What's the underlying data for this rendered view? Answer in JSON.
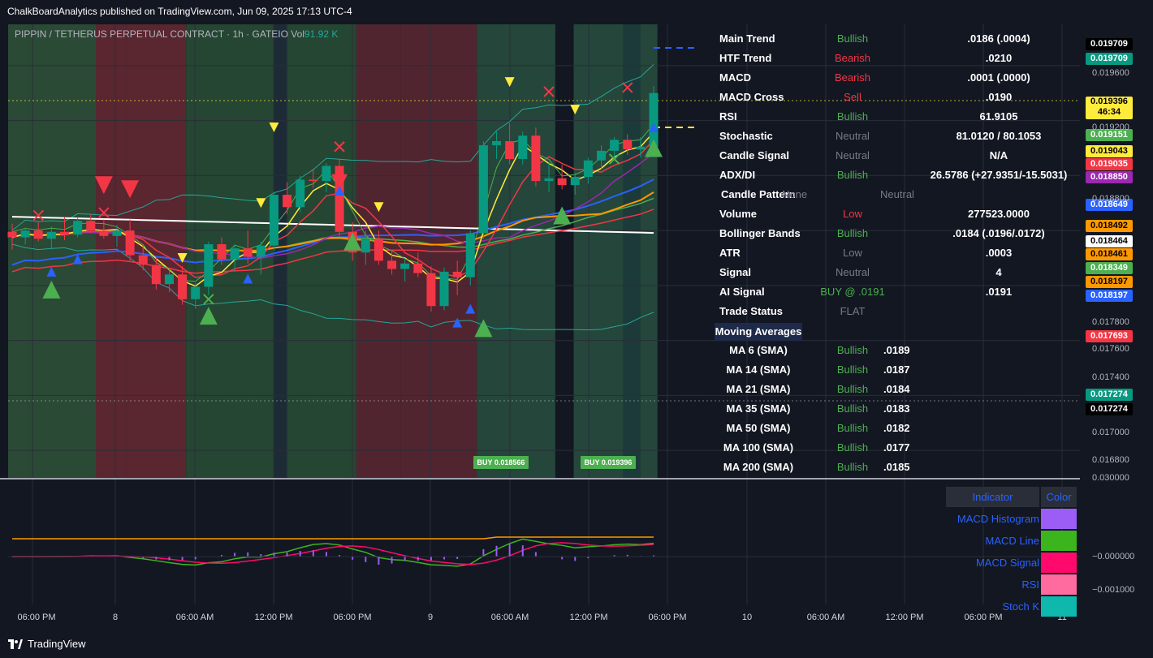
{
  "header": {
    "publisher": "ChalkBoardAnalytics published on TradingView.com, Jun 09, 2025 17:13 UTC-4",
    "symbol": "PIPPIN / TETHERUS PERPETUAL CONTRACT · 1h · GATEIO",
    "vol_label": "Vol",
    "vol_value": "91.92 K"
  },
  "footer": {
    "brand": "TradingView"
  },
  "dashboard": [
    {
      "label": "Main Trend",
      "status": "Bullish",
      "color": "#4caf50",
      "value": ".0186 (.0004)"
    },
    {
      "label": "HTF Trend",
      "status": "Bearish",
      "color": "#f23645",
      "value": ".0210"
    },
    {
      "label": "MACD",
      "status": "Bearish",
      "color": "#f23645",
      "value": ".0001 (.0000)"
    },
    {
      "label": "MACD Cross",
      "status": "Sell",
      "color": "#f23645",
      "value": ".0190"
    },
    {
      "label": "RSI",
      "status": "Bullish",
      "color": "#4caf50",
      "value": "61.9105"
    },
    {
      "label": "Stochastic",
      "status": "Neutral",
      "color": "#787b86",
      "value": "81.0120 / 80.1053"
    },
    {
      "label": "Candle Signal",
      "status": "Neutral",
      "color": "#787b86",
      "value": "N/A"
    },
    {
      "label": "ADX/DI",
      "status": "Bullish",
      "color": "#4caf50",
      "value": "26.5786 (+27.9351/-15.5031)"
    },
    {
      "label": "Candle Pattern",
      "status": "None",
      "color": "#787b86",
      "value": "Neutral",
      "value_color": "#787b86"
    },
    {
      "label": "Volume",
      "status": "Low",
      "color": "#f23645",
      "value": "277523.0000"
    },
    {
      "label": "Bollinger Bands",
      "status": "Bullish",
      "color": "#4caf50",
      "value": ".0184 (.0196/.0172)"
    },
    {
      "label": "ATR",
      "status": "Low",
      "color": "#787b86",
      "value": ".0003"
    },
    {
      "label": "Signal",
      "status": "Neutral",
      "color": "#787b86",
      "value": "4"
    },
    {
      "label": "AI Signal",
      "status": "BUY @ .0191",
      "color": "#4caf50",
      "value": ".0191"
    },
    {
      "label": "Trade Status",
      "status": "FLAT",
      "color": "#787b86",
      "value": ""
    }
  ],
  "moving_averages": {
    "header": "Moving Averages",
    "rows": [
      {
        "label": "MA 6 (SMA)",
        "status": "Bullish",
        "value": ".0189"
      },
      {
        "label": "MA 14 (SMA)",
        "status": "Bullish",
        "value": ".0187"
      },
      {
        "label": "MA 21 (SMA)",
        "status": "Bullish",
        "value": ".0184"
      },
      {
        "label": "MA 35 (SMA)",
        "status": "Bullish",
        "value": ".0183"
      },
      {
        "label": "MA 50 (SMA)",
        "status": "Bullish",
        "value": ".0182"
      },
      {
        "label": "MA 100 (SMA)",
        "status": "Bullish",
        "value": ".0177"
      },
      {
        "label": "MA 200 (SMA)",
        "status": "Bullish",
        "value": ".0185"
      }
    ]
  },
  "price_badges": [
    {
      "value": "0.019709",
      "bg": "#000000",
      "fg": "#ffffff"
    },
    {
      "value": "0.019709",
      "bg": "#089981",
      "fg": "#ffffff"
    },
    {
      "value": "0.019396",
      "bg": "#ffeb3b",
      "fg": "#000000",
      "sub": "46:34"
    },
    {
      "value": "0.019151",
      "bg": "#4caf50",
      "fg": "#ffffff"
    },
    {
      "value": "0.019043",
      "bg": "#ffeb3b",
      "fg": "#000000"
    },
    {
      "value": "0.019035",
      "bg": "#f23645",
      "fg": "#ffffff"
    },
    {
      "value": "0.018850",
      "bg": "#9c27b0",
      "fg": "#ffffff"
    },
    {
      "value": "0.018649",
      "bg": "#2962ff",
      "fg": "#ffffff"
    },
    {
      "value": "0.018492",
      "bg": "#ff9800",
      "fg": "#000000"
    },
    {
      "value": "0.018464",
      "bg": "#ffffff",
      "fg": "#000000"
    },
    {
      "value": "0.018461",
      "bg": "#ff9800",
      "fg": "#000000"
    },
    {
      "value": "0.018349",
      "bg": "#4caf50",
      "fg": "#ffffff"
    },
    {
      "value": "0.018197",
      "bg": "#ff9800",
      "fg": "#000000"
    },
    {
      "value": "0.018197",
      "bg": "#2962ff",
      "fg": "#ffffff"
    },
    {
      "value": "0.017693",
      "bg": "#f23645",
      "fg": "#ffffff"
    },
    {
      "value": "0.017274",
      "bg": "#089981",
      "fg": "#ffffff"
    },
    {
      "value": "0.017274",
      "bg": "#000000",
      "fg": "#ffffff"
    }
  ],
  "price_axis": [
    "0.019600",
    "0.019200",
    "0.018800",
    "0.017800",
    "0.017600",
    "0.017400",
    "0.017000",
    "0.016800",
    "0.030000"
  ],
  "osc_axis": [
    "−0.000000",
    "−0.001000"
  ],
  "time_axis": [
    "06:00 PM",
    "8",
    "06:00 AM",
    "12:00 PM",
    "06:00 PM",
    "9",
    "06:00 AM",
    "12:00 PM",
    "06:00 PM",
    "10",
    "06:00 AM",
    "12:00 PM",
    "06:00 PM",
    "11"
  ],
  "buy_labels": [
    "BUY 0.018566",
    "BUY 0.019396"
  ],
  "legend": {
    "header_indicator": "Indicator",
    "header_color": "Color",
    "rows": [
      {
        "name": "MACD Histogram",
        "color": "#9c5cf6"
      },
      {
        "name": "MACD Line",
        "color": "#3cb41e"
      },
      {
        "name": "MACD Signal",
        "color": "#ff0a6c"
      },
      {
        "name": "RSI",
        "color": "#ff6b9e"
      },
      {
        "name": "Stoch K",
        "color": "#0fb8ad"
      }
    ]
  },
  "chart_data": {
    "type": "candlestick",
    "y_range": [
      0.0166,
      0.0199
    ],
    "candles": [
      {
        "o": 0.01839,
        "h": 0.01845,
        "l": 0.01826,
        "c": 0.01835
      },
      {
        "o": 0.01835,
        "h": 0.01842,
        "l": 0.0183,
        "c": 0.0184
      },
      {
        "o": 0.0184,
        "h": 0.01846,
        "l": 0.01832,
        "c": 0.01834
      },
      {
        "o": 0.01834,
        "h": 0.01843,
        "l": 0.01826,
        "c": 0.01839
      },
      {
        "o": 0.01839,
        "h": 0.0185,
        "l": 0.01833,
        "c": 0.01837
      },
      {
        "o": 0.01837,
        "h": 0.0185,
        "l": 0.01835,
        "c": 0.01847
      },
      {
        "o": 0.01847,
        "h": 0.01852,
        "l": 0.01838,
        "c": 0.0184
      },
      {
        "o": 0.0184,
        "h": 0.01848,
        "l": 0.01834,
        "c": 0.01836
      },
      {
        "o": 0.01836,
        "h": 0.01844,
        "l": 0.01828,
        "c": 0.0184
      },
      {
        "o": 0.0184,
        "h": 0.01848,
        "l": 0.01818,
        "c": 0.01822
      },
      {
        "o": 0.01822,
        "h": 0.0183,
        "l": 0.01811,
        "c": 0.01815
      },
      {
        "o": 0.01815,
        "h": 0.0182,
        "l": 0.01797,
        "c": 0.01801
      },
      {
        "o": 0.01801,
        "h": 0.01812,
        "l": 0.01795,
        "c": 0.01808
      },
      {
        "o": 0.01808,
        "h": 0.01814,
        "l": 0.01786,
        "c": 0.0179
      },
      {
        "o": 0.0179,
        "h": 0.01802,
        "l": 0.01783,
        "c": 0.01799
      },
      {
        "o": 0.01799,
        "h": 0.01832,
        "l": 0.01793,
        "c": 0.0183
      },
      {
        "o": 0.0183,
        "h": 0.01835,
        "l": 0.01815,
        "c": 0.01819
      },
      {
        "o": 0.01819,
        "h": 0.0183,
        "l": 0.0181,
        "c": 0.01827
      },
      {
        "o": 0.01827,
        "h": 0.0184,
        "l": 0.01816,
        "c": 0.01821
      },
      {
        "o": 0.01821,
        "h": 0.01832,
        "l": 0.01808,
        "c": 0.01829
      },
      {
        "o": 0.01829,
        "h": 0.01868,
        "l": 0.01825,
        "c": 0.01866
      },
      {
        "o": 0.01866,
        "h": 0.01875,
        "l": 0.01852,
        "c": 0.01857
      },
      {
        "o": 0.01857,
        "h": 0.0188,
        "l": 0.01853,
        "c": 0.01877
      },
      {
        "o": 0.01877,
        "h": 0.01885,
        "l": 0.01871,
        "c": 0.01876
      },
      {
        "o": 0.01876,
        "h": 0.01889,
        "l": 0.01868,
        "c": 0.01887
      },
      {
        "o": 0.01887,
        "h": 0.01892,
        "l": 0.01835,
        "c": 0.01839
      },
      {
        "o": 0.01839,
        "h": 0.01846,
        "l": 0.01818,
        "c": 0.01824
      },
      {
        "o": 0.01824,
        "h": 0.0184,
        "l": 0.01815,
        "c": 0.01834
      },
      {
        "o": 0.01834,
        "h": 0.0184,
        "l": 0.01815,
        "c": 0.01818
      },
      {
        "o": 0.01818,
        "h": 0.01826,
        "l": 0.01808,
        "c": 0.01812
      },
      {
        "o": 0.01812,
        "h": 0.0182,
        "l": 0.01803,
        "c": 0.01816
      },
      {
        "o": 0.01816,
        "h": 0.01824,
        "l": 0.01806,
        "c": 0.01809
      },
      {
        "o": 0.01809,
        "h": 0.01814,
        "l": 0.01781,
        "c": 0.01785
      },
      {
        "o": 0.01785,
        "h": 0.01813,
        "l": 0.01782,
        "c": 0.0181
      },
      {
        "o": 0.0181,
        "h": 0.01818,
        "l": 0.01793,
        "c": 0.01806
      },
      {
        "o": 0.01806,
        "h": 0.0184,
        "l": 0.018,
        "c": 0.01838
      },
      {
        "o": 0.01838,
        "h": 0.01905,
        "l": 0.01834,
        "c": 0.01902
      },
      {
        "o": 0.01902,
        "h": 0.01912,
        "l": 0.01892,
        "c": 0.01905
      },
      {
        "o": 0.01905,
        "h": 0.01918,
        "l": 0.01888,
        "c": 0.01892
      },
      {
        "o": 0.01892,
        "h": 0.01912,
        "l": 0.01888,
        "c": 0.01909
      },
      {
        "o": 0.01909,
        "h": 0.01915,
        "l": 0.01872,
        "c": 0.01876
      },
      {
        "o": 0.01876,
        "h": 0.0189,
        "l": 0.01868,
        "c": 0.01878
      },
      {
        "o": 0.01878,
        "h": 0.01888,
        "l": 0.0187,
        "c": 0.01873
      },
      {
        "o": 0.01873,
        "h": 0.01882,
        "l": 0.01866,
        "c": 0.01879
      },
      {
        "o": 0.01879,
        "h": 0.01893,
        "l": 0.01874,
        "c": 0.01891
      },
      {
        "o": 0.01891,
        "h": 0.01902,
        "l": 0.01885,
        "c": 0.01898
      },
      {
        "o": 0.01898,
        "h": 0.01908,
        "l": 0.01892,
        "c": 0.01906
      },
      {
        "o": 0.01906,
        "h": 0.0191,
        "l": 0.01895,
        "c": 0.01899
      },
      {
        "o": 0.01899,
        "h": 0.01908,
        "l": 0.01893,
        "c": 0.01901
      },
      {
        "o": 0.01901,
        "h": 0.01945,
        "l": 0.01895,
        "c": 0.0194
      }
    ]
  }
}
